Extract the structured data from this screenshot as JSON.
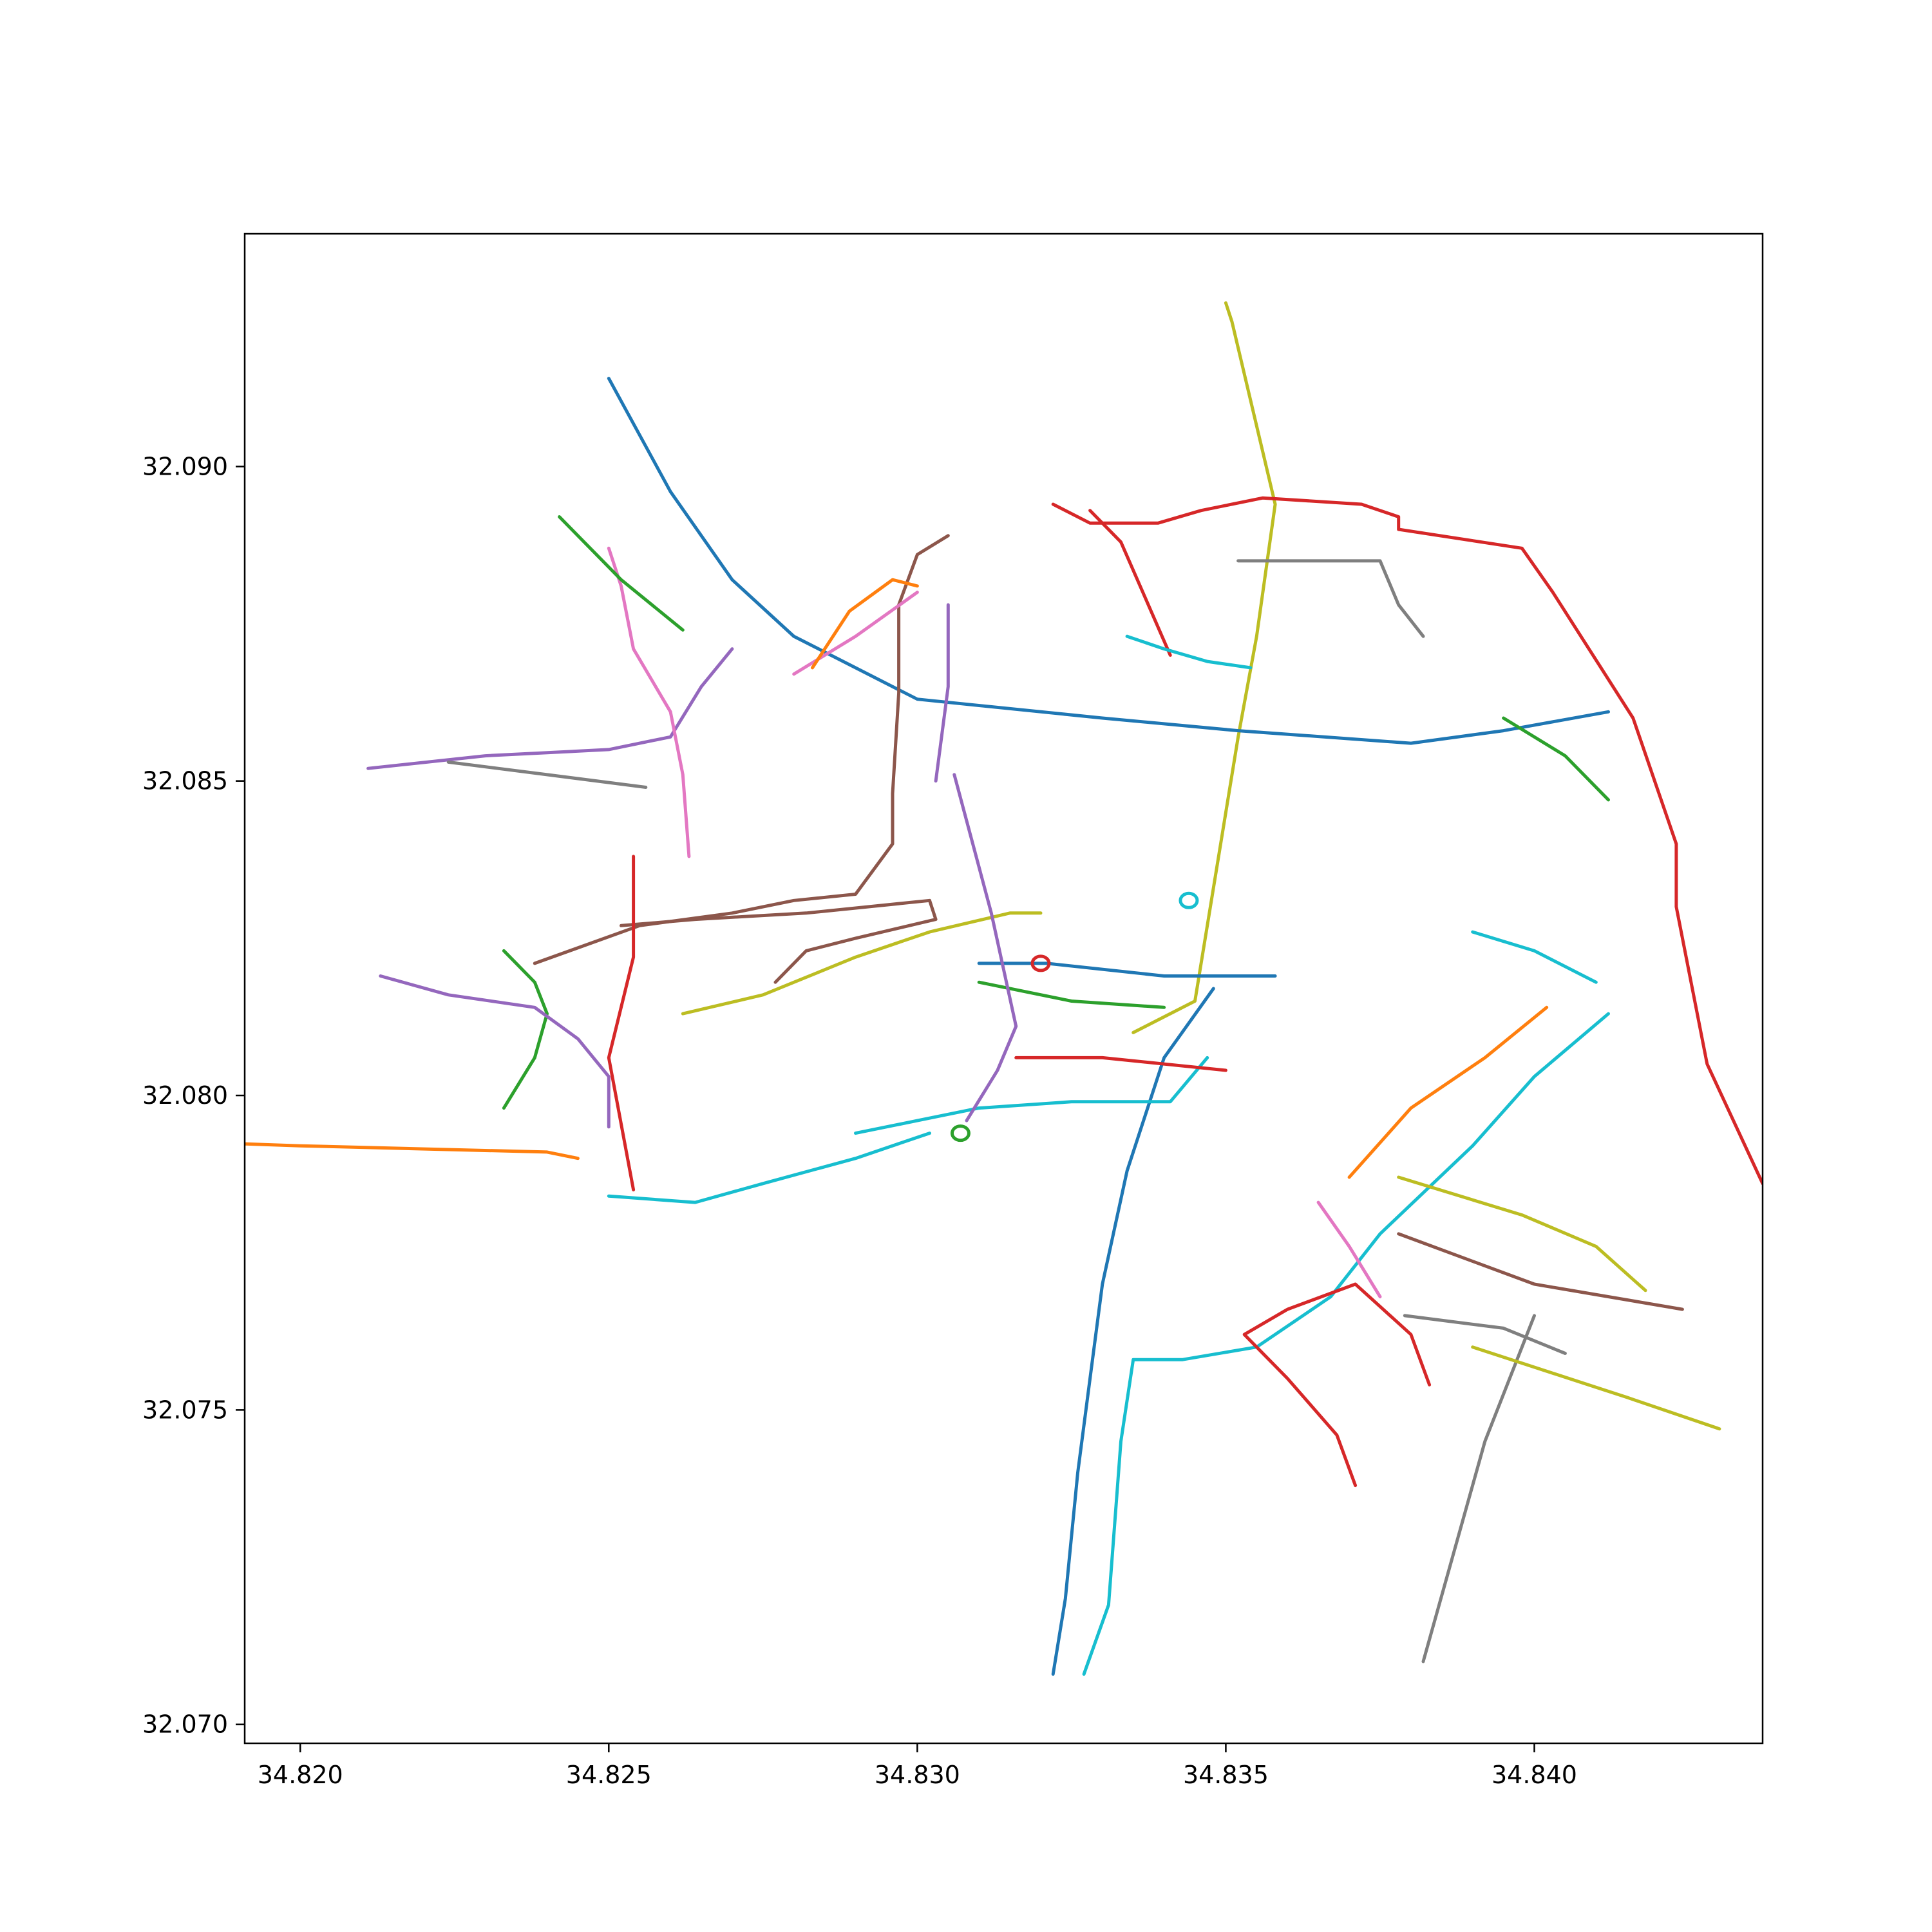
{
  "chart_data": {
    "type": "line",
    "title": "",
    "xlabel": "",
    "ylabel": "",
    "xlim": [
      34.8191,
      34.8437
    ],
    "ylim": [
      32.0697,
      32.0937
    ],
    "x_ticks": [
      {
        "value": 34.82,
        "label": "34.820"
      },
      {
        "value": 34.825,
        "label": "34.825"
      },
      {
        "value": 34.83,
        "label": "34.830"
      },
      {
        "value": 34.835,
        "label": "34.835"
      },
      {
        "value": 34.84,
        "label": "34.840"
      }
    ],
    "y_ticks": [
      {
        "value": 32.07,
        "label": "32.070"
      },
      {
        "value": 32.075,
        "label": "32.075"
      },
      {
        "value": 32.08,
        "label": "32.080"
      },
      {
        "value": 32.085,
        "label": "32.085"
      },
      {
        "value": 32.09,
        "label": "32.090"
      }
    ],
    "grid": false,
    "palette": [
      "#1f77b4",
      "#ff7f0e",
      "#2ca02c",
      "#d62728",
      "#9467bd",
      "#8c564b",
      "#e377c2",
      "#7f7f7f",
      "#bcbd22",
      "#17becf"
    ],
    "roundabouts": [
      {
        "x": 34.8344,
        "y": 32.0831,
        "color": "#17becf"
      },
      {
        "x": 34.832,
        "y": 32.0821,
        "color": "#d62728"
      },
      {
        "x": 34.8307,
        "y": 32.0794,
        "color": "#2ca02c"
      }
    ],
    "roads": [
      {
        "color": "#bcbd22",
        "points": [
          [
            34.835,
            32.0926
          ],
          [
            34.8351,
            32.0923
          ],
          [
            34.8358,
            32.0894
          ],
          [
            34.8355,
            32.0873
          ],
          [
            34.8352,
            32.0857
          ],
          [
            34.8345,
            32.0815
          ],
          [
            34.8335,
            32.081
          ]
        ]
      },
      {
        "color": "#d62728",
        "points": [
          [
            34.8322,
            32.0894
          ],
          [
            34.8328,
            32.0891
          ],
          [
            34.8339,
            32.0891
          ],
          [
            34.8346,
            32.0893
          ],
          [
            34.8356,
            32.0895
          ],
          [
            34.8372,
            32.0894
          ],
          [
            34.8378,
            32.0892
          ],
          [
            34.8378,
            32.089
          ],
          [
            34.8398,
            32.0887
          ],
          [
            34.8403,
            32.088
          ],
          [
            34.8416,
            32.086
          ],
          [
            34.8423,
            32.084
          ],
          [
            34.8423,
            32.083
          ],
          [
            34.8428,
            32.0805
          ],
          [
            34.8437,
            32.0786
          ]
        ]
      },
      {
        "color": "#1f77b4",
        "points": [
          [
            34.825,
            32.0914
          ],
          [
            34.826,
            32.0896
          ],
          [
            34.827,
            32.0882
          ],
          [
            34.828,
            32.0873
          ],
          [
            34.83,
            32.0863
          ],
          [
            34.833,
            32.086
          ],
          [
            34.8352,
            32.0858
          ],
          [
            34.838,
            32.0856
          ],
          [
            34.8395,
            32.0858
          ],
          [
            34.8412,
            32.0861
          ]
        ]
      },
      {
        "color": "#17becf",
        "points": [
          [
            34.8412,
            32.0813
          ],
          [
            34.84,
            32.0803
          ],
          [
            34.839,
            32.0792
          ],
          [
            34.8375,
            32.0778
          ],
          [
            34.8367,
            32.0768
          ],
          [
            34.8355,
            32.076
          ],
          [
            34.8343,
            32.0758
          ],
          [
            34.8335,
            32.0758
          ],
          [
            34.8333,
            32.0745
          ],
          [
            34.8331,
            32.0719
          ],
          [
            34.8327,
            32.0708
          ]
        ]
      },
      {
        "color": "#1f77b4",
        "points": [
          [
            34.8348,
            32.0817
          ],
          [
            34.834,
            32.0806
          ],
          [
            34.8334,
            32.0788
          ],
          [
            34.833,
            32.077
          ],
          [
            34.8328,
            32.0755
          ],
          [
            34.8326,
            32.074
          ],
          [
            34.8324,
            32.072
          ],
          [
            34.8322,
            32.0708
          ]
        ]
      },
      {
        "color": "#ff7f0e",
        "points": [
          [
            34.814,
            32.0794
          ],
          [
            34.82,
            32.0792
          ],
          [
            34.824,
            32.0791
          ],
          [
            34.8245,
            32.079
          ]
        ]
      },
      {
        "color": "#8c564b",
        "points": [
          [
            34.8305,
            32.0889
          ],
          [
            34.83,
            32.0886
          ],
          [
            34.8297,
            32.0878
          ],
          [
            34.8297,
            32.0864
          ],
          [
            34.8296,
            32.0848
          ],
          [
            34.8296,
            32.084
          ],
          [
            34.829,
            32.0832
          ],
          [
            34.828,
            32.0831
          ],
          [
            34.827,
            32.0829
          ],
          [
            34.8255,
            32.0827
          ],
          [
            34.8238,
            32.0821
          ]
        ]
      },
      {
        "color": "#9467bd",
        "points": [
          [
            34.8211,
            32.0852
          ],
          [
            34.823,
            32.0854
          ],
          [
            34.825,
            32.0855
          ],
          [
            34.826,
            32.0857
          ],
          [
            34.8265,
            32.0865
          ],
          [
            34.827,
            32.0871
          ]
        ]
      },
      {
        "color": "#e377c2",
        "points": [
          [
            34.825,
            32.0887
          ],
          [
            34.8252,
            32.0881
          ],
          [
            34.8254,
            32.0871
          ],
          [
            34.826,
            32.0861
          ],
          [
            34.8262,
            32.0851
          ],
          [
            34.8263,
            32.0838
          ]
        ]
      },
      {
        "color": "#8c564b",
        "points": [
          [
            34.8252,
            32.0827
          ],
          [
            34.8264,
            32.0828
          ],
          [
            34.8282,
            32.0829
          ],
          [
            34.8302,
            32.0831
          ],
          [
            34.8303,
            32.0828
          ],
          [
            34.829,
            32.0825
          ],
          [
            34.8282,
            32.0823
          ],
          [
            34.8277,
            32.0818
          ]
        ]
      },
      {
        "color": "#bcbd22",
        "points": [
          [
            34.8262,
            32.0813
          ],
          [
            34.8275,
            32.0816
          ],
          [
            34.829,
            32.0822
          ],
          [
            34.8302,
            32.0826
          ],
          [
            34.8315,
            32.0829
          ],
          [
            34.832,
            32.0829
          ]
        ]
      },
      {
        "color": "#17becf",
        "points": [
          [
            34.829,
            32.0794
          ],
          [
            34.83,
            32.0796
          ],
          [
            34.831,
            32.0798
          ],
          [
            34.8325,
            32.0799
          ],
          [
            34.8333,
            32.0799
          ],
          [
            34.8341,
            32.0799
          ],
          [
            34.8347,
            32.0806
          ]
        ]
      },
      {
        "color": "#17becf",
        "points": [
          [
            34.8302,
            32.0794
          ],
          [
            34.829,
            32.079
          ],
          [
            34.8275,
            32.0786
          ],
          [
            34.8264,
            32.0783
          ],
          [
            34.825,
            32.0784
          ]
        ]
      },
      {
        "color": "#1f77b4",
        "points": [
          [
            34.831,
            32.0821
          ],
          [
            34.8321,
            32.0821
          ],
          [
            34.834,
            32.0819
          ],
          [
            34.8358,
            32.0819
          ]
        ]
      },
      {
        "color": "#2ca02c",
        "points": [
          [
            34.831,
            32.0818
          ],
          [
            34.8325,
            32.0815
          ],
          [
            34.834,
            32.0814
          ]
        ]
      },
      {
        "color": "#d62728",
        "points": [
          [
            34.8316,
            32.0806
          ],
          [
            34.833,
            32.0806
          ],
          [
            34.835,
            32.0804
          ]
        ]
      },
      {
        "color": "#9467bd",
        "points": [
          [
            34.8306,
            32.0851
          ],
          [
            34.8312,
            32.0829
          ],
          [
            34.8316,
            32.0811
          ],
          [
            34.8313,
            32.0804
          ],
          [
            34.8308,
            32.0796
          ]
        ]
      },
      {
        "color": "#d62728",
        "points": [
          [
            34.8254,
            32.0838
          ],
          [
            34.8254,
            32.0822
          ],
          [
            34.825,
            32.0806
          ],
          [
            34.8254,
            32.0785
          ]
        ]
      },
      {
        "color": "#2ca02c",
        "points": [
          [
            34.8233,
            32.0823
          ],
          [
            34.8238,
            32.0818
          ],
          [
            34.824,
            32.0813
          ],
          [
            34.8238,
            32.0806
          ],
          [
            34.8233,
            32.0798
          ]
        ]
      },
      {
        "color": "#9467bd",
        "points": [
          [
            34.8213,
            32.0819
          ],
          [
            34.8224,
            32.0816
          ],
          [
            34.8238,
            32.0814
          ],
          [
            34.8245,
            32.0809
          ],
          [
            34.825,
            32.0803
          ],
          [
            34.825,
            32.0795
          ]
        ]
      },
      {
        "color": "#7f7f7f",
        "points": [
          [
            34.8382,
            32.071
          ],
          [
            34.8392,
            32.0745
          ],
          [
            34.84,
            32.0765
          ]
        ]
      },
      {
        "color": "#bcbd22",
        "points": [
          [
            34.8378,
            32.0787
          ],
          [
            34.8398,
            32.0781
          ],
          [
            34.841,
            32.0776
          ],
          [
            34.8418,
            32.0769
          ]
        ]
      },
      {
        "color": "#8c564b",
        "points": [
          [
            34.8378,
            32.0778
          ],
          [
            34.84,
            32.077
          ],
          [
            34.8424,
            32.0766
          ]
        ]
      },
      {
        "color": "#bcbd22",
        "points": [
          [
            34.839,
            32.076
          ],
          [
            34.8415,
            32.0752
          ],
          [
            34.843,
            32.0747
          ]
        ]
      },
      {
        "color": "#d62728",
        "points": [
          [
            34.8371,
            32.0738
          ],
          [
            34.8368,
            32.0746
          ],
          [
            34.836,
            32.0755
          ],
          [
            34.8353,
            32.0762
          ],
          [
            34.836,
            32.0766
          ],
          [
            34.8371,
            32.077
          ],
          [
            34.838,
            32.0762
          ],
          [
            34.8383,
            32.0754
          ]
        ]
      },
      {
        "color": "#ff7f0e",
        "points": [
          [
            34.837,
            32.0787
          ],
          [
            34.838,
            32.0798
          ],
          [
            34.8392,
            32.0806
          ],
          [
            34.8402,
            32.0814
          ]
        ]
      },
      {
        "color": "#7f7f7f",
        "points": [
          [
            34.8224,
            32.0853
          ],
          [
            34.824,
            32.0851
          ],
          [
            34.8256,
            32.0849
          ]
        ]
      },
      {
        "color": "#2ca02c",
        "points": [
          [
            34.8242,
            32.0892
          ],
          [
            34.8252,
            32.0882
          ],
          [
            34.8262,
            32.0874
          ]
        ]
      },
      {
        "color": "#e377c2",
        "points": [
          [
            34.828,
            32.0867
          ],
          [
            34.829,
            32.0873
          ],
          [
            34.83,
            32.088
          ]
        ]
      },
      {
        "color": "#ff7f0e",
        "points": [
          [
            34.8283,
            32.0868
          ],
          [
            34.8289,
            32.0877
          ],
          [
            34.8296,
            32.0882
          ],
          [
            34.83,
            32.0881
          ]
        ]
      },
      {
        "color": "#d62728",
        "points": [
          [
            34.8328,
            32.0893
          ],
          [
            34.8333,
            32.0888
          ],
          [
            34.8337,
            32.0879
          ],
          [
            34.8341,
            32.087
          ]
        ]
      },
      {
        "color": "#17becf",
        "points": [
          [
            34.8334,
            32.0873
          ],
          [
            34.834,
            32.0871
          ],
          [
            34.8347,
            32.0869
          ],
          [
            34.8354,
            32.0868
          ]
        ]
      },
      {
        "color": "#9467bd",
        "points": [
          [
            34.8305,
            32.0878
          ],
          [
            34.8305,
            32.0865
          ],
          [
            34.8303,
            32.085
          ]
        ]
      },
      {
        "color": "#7f7f7f",
        "points": [
          [
            34.8352,
            32.0885
          ],
          [
            34.836,
            32.0885
          ],
          [
            34.8375,
            32.0885
          ],
          [
            34.8378,
            32.0878
          ],
          [
            34.8382,
            32.0873
          ]
        ]
      },
      {
        "color": "#2ca02c",
        "points": [
          [
            34.8395,
            32.086
          ],
          [
            34.8405,
            32.0854
          ],
          [
            34.8412,
            32.0847
          ]
        ]
      },
      {
        "color": "#17becf",
        "points": [
          [
            34.839,
            32.0826
          ],
          [
            34.84,
            32.0823
          ],
          [
            34.841,
            32.0818
          ]
        ]
      },
      {
        "color": "#e377c2",
        "points": [
          [
            34.8365,
            32.0783
          ],
          [
            34.837,
            32.0776
          ],
          [
            34.8375,
            32.0768
          ]
        ]
      },
      {
        "color": "#7f7f7f",
        "points": [
          [
            34.8379,
            32.0765
          ],
          [
            34.8395,
            32.0763
          ],
          [
            34.8405,
            32.0759
          ]
        ]
      }
    ]
  }
}
